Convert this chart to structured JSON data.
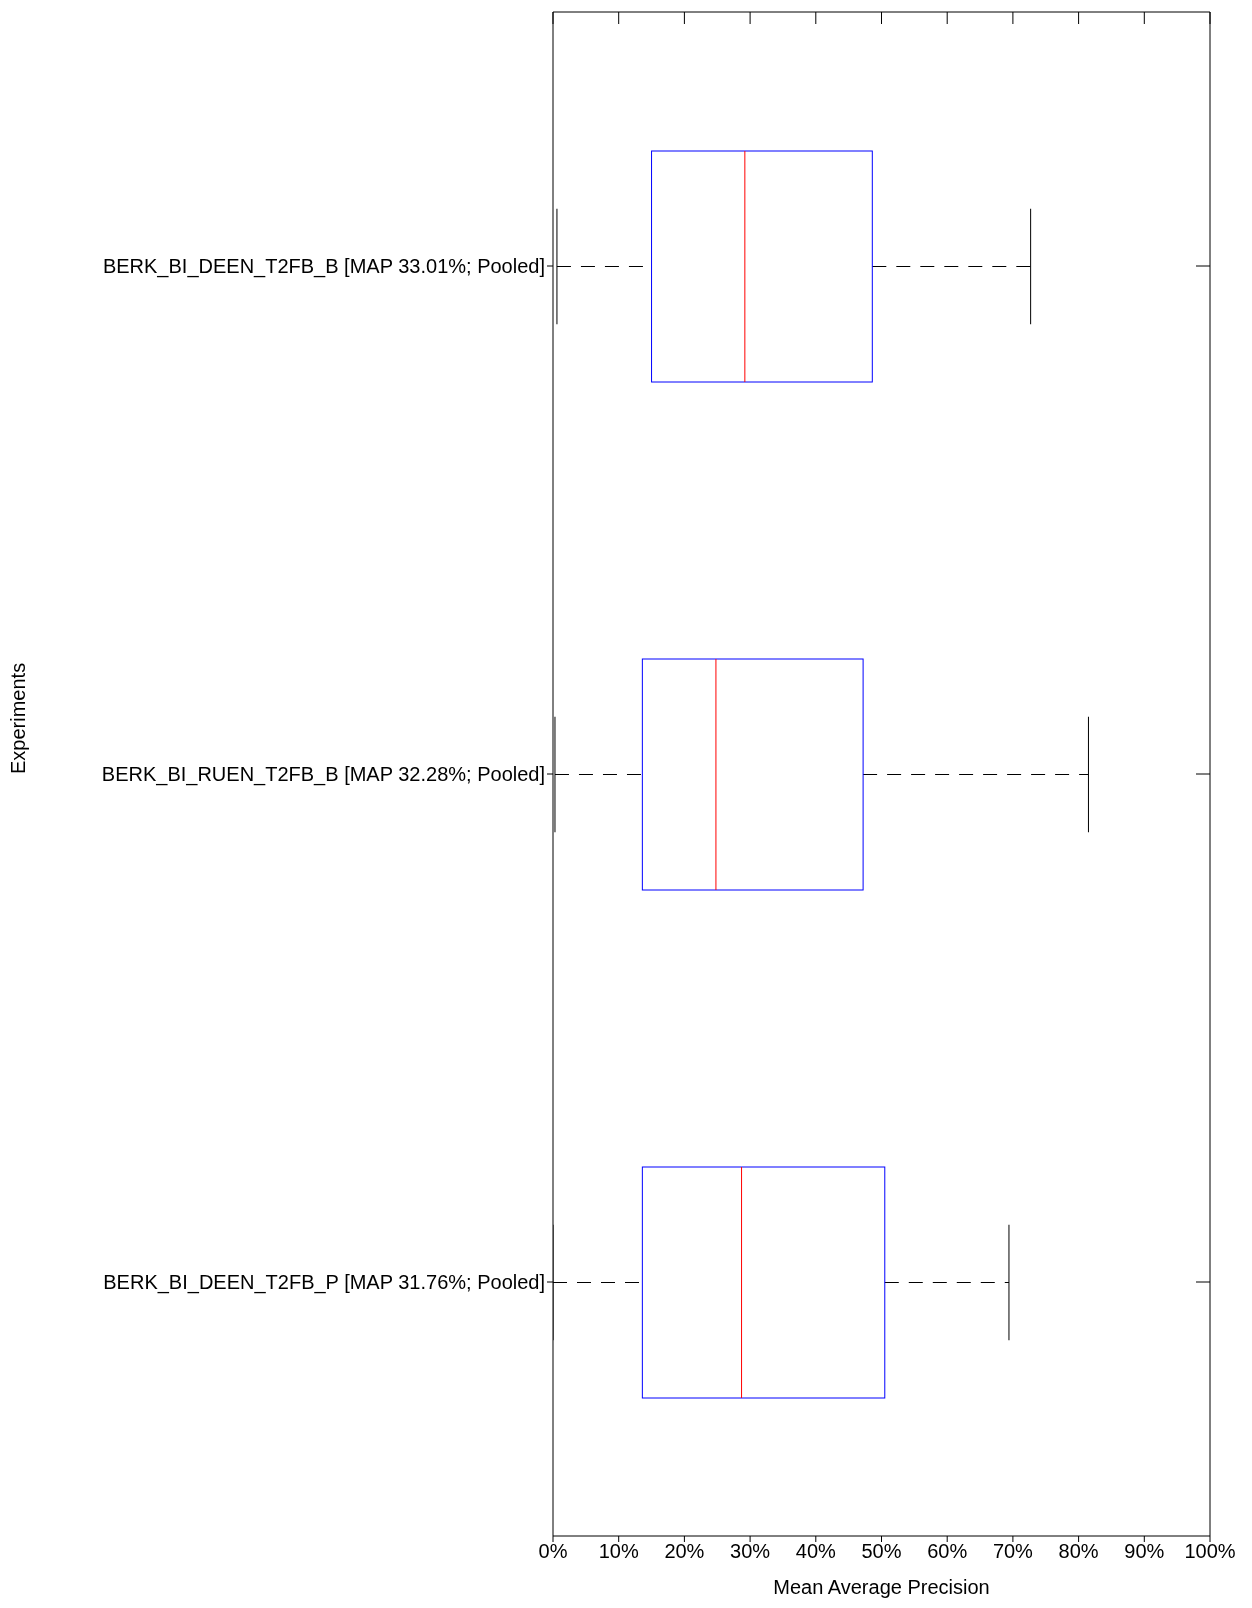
{
  "chart_data": {
    "type": "box",
    "orientation": "horizontal",
    "xlabel": "Mean Average Precision",
    "ylabel": "Experiments",
    "categories": [
      "BERK_BI_DEEN_T2FB_B [MAP 33.01%; Pooled]",
      "BERK_BI_RUEN_T2FB_B [MAP 32.28%; Pooled]",
      "BERK_BI_DEEN_T2FB_P [MAP 31.76%; Pooled]"
    ],
    "series": [
      {
        "color": "#0000ff",
        "boxes": [
          {
            "low": 0.6,
            "q1": 15.0,
            "median": 29.2,
            "q3": 48.6,
            "high": 72.7
          },
          {
            "low": 0.3,
            "q1": 13.6,
            "median": 24.8,
            "q3": 47.2,
            "high": 81.5
          },
          {
            "low": 0,
            "q1": 13.6,
            "median": 28.7,
            "q3": 50.5,
            "high": 69.4
          }
        ]
      }
    ],
    "xlim": [
      0,
      100
    ],
    "xticks": [
      {
        "value": 0,
        "label": "0%"
      },
      {
        "value": 10,
        "label": "10%"
      },
      {
        "value": 20,
        "label": "20%"
      },
      {
        "value": 30,
        "label": "30%"
      },
      {
        "value": 40,
        "label": "40%"
      },
      {
        "value": 50,
        "label": "50%"
      },
      {
        "value": 60,
        "label": "60%"
      },
      {
        "value": 70,
        "label": "70%"
      },
      {
        "value": 80,
        "label": "80%"
      },
      {
        "value": 90,
        "label": "90%"
      },
      {
        "value": 100,
        "label": "100%"
      }
    ],
    "grid": false
  }
}
